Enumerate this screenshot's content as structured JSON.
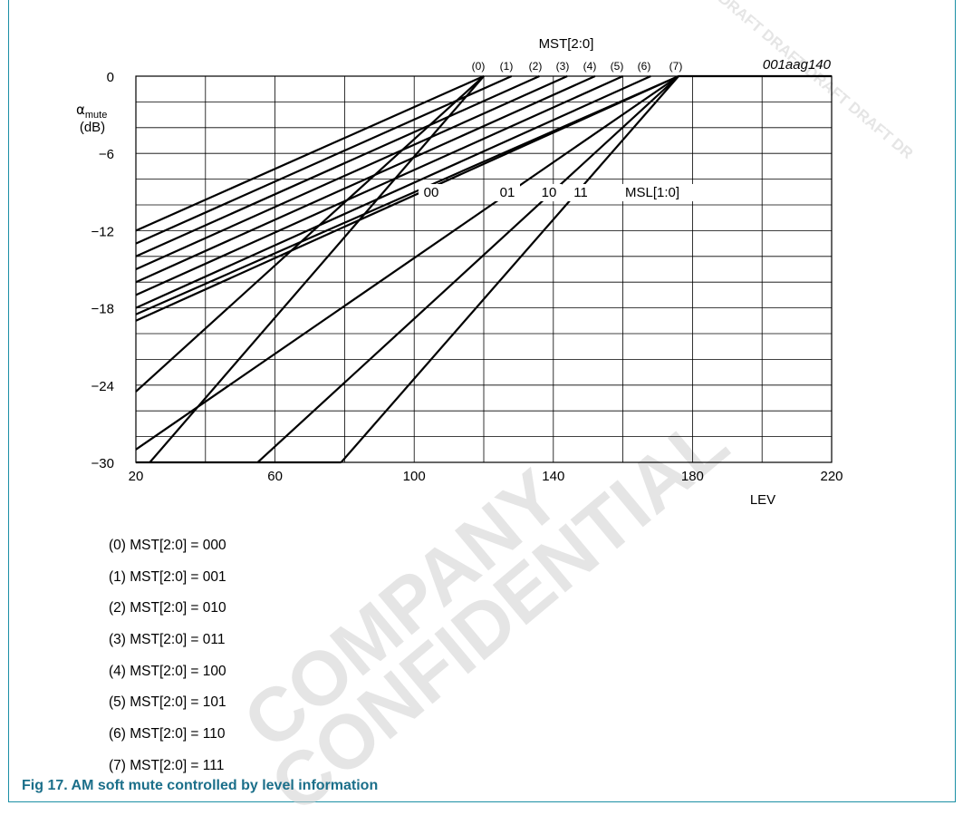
{
  "figure": {
    "code": "001aag140",
    "caption": "Fig 17.   AM soft mute controlled by level information",
    "watermark": [
      "COMPANY",
      "CONFIDENTIAL",
      "DRAFT DRAFT DRAFT DRAFT DR"
    ]
  },
  "chart_data": {
    "type": "line",
    "xlabel": "LEV",
    "ylabel": "αmute",
    "ylabel_main": "α",
    "ylabel_sub": "mute",
    "ylabel_unit": "(dB)",
    "xlim": [
      20,
      220
    ],
    "ylim": [
      -30,
      0
    ],
    "xticks": [
      20,
      60,
      100,
      140,
      180,
      220
    ],
    "yticks": [
      0,
      -6,
      -12,
      -18,
      -24,
      -30
    ],
    "ytick_labels": [
      "0",
      "−6",
      "−12",
      "−18",
      "−24",
      "−30"
    ],
    "grid": true,
    "mst_group_label": "MST[2:0]",
    "mst_labels": [
      "(0)",
      "(1)",
      "(2)",
      "(3)",
      "(4)",
      "(5)",
      "(6)",
      "(7)"
    ],
    "msl_group_label": "MSL[1:0]",
    "msl_labels": [
      "00",
      "01",
      "10",
      "11"
    ],
    "series_mst": [
      {
        "label": "(0)",
        "points": [
          [
            20,
            -12
          ],
          [
            120,
            0
          ]
        ]
      },
      {
        "label": "(1)",
        "points": [
          [
            20,
            -13
          ],
          [
            128,
            0
          ]
        ]
      },
      {
        "label": "(2)",
        "points": [
          [
            20,
            -14
          ],
          [
            136,
            0
          ]
        ]
      },
      {
        "label": "(3)",
        "points": [
          [
            20,
            -15
          ],
          [
            144,
            0
          ]
        ]
      },
      {
        "label": "(4)",
        "points": [
          [
            20,
            -16
          ],
          [
            152,
            0
          ]
        ]
      },
      {
        "label": "(5)",
        "points": [
          [
            20,
            -17
          ],
          [
            160,
            0
          ]
        ]
      },
      {
        "label": "(6)",
        "points": [
          [
            20,
            -18
          ],
          [
            168,
            0
          ]
        ]
      },
      {
        "label": "(7)",
        "points": [
          [
            20,
            -19
          ],
          [
            176,
            0
          ]
        ]
      }
    ],
    "series_msl": [
      {
        "label": "00",
        "points": [
          [
            20,
            -18.5
          ],
          [
            176,
            0
          ]
        ]
      },
      {
        "label": "01",
        "points": [
          [
            20,
            -29
          ],
          [
            176,
            0
          ]
        ]
      },
      {
        "label": "10",
        "points": [
          [
            55,
            -30
          ],
          [
            176,
            0
          ]
        ]
      },
      {
        "label": "11",
        "points": [
          [
            79,
            -30
          ],
          [
            176,
            0
          ]
        ]
      }
    ],
    "series_other": [
      {
        "label": "",
        "points": [
          [
            20,
            -24.5
          ],
          [
            120,
            0
          ]
        ]
      },
      {
        "label": "",
        "points": [
          [
            24,
            -30
          ],
          [
            120,
            0
          ]
        ]
      },
      {
        "label": "",
        "points": [
          [
            20,
            -30
          ],
          [
            79,
            -30
          ]
        ]
      },
      {
        "label": "",
        "points": [
          [
            176,
            0
          ],
          [
            220,
            0
          ]
        ]
      }
    ]
  },
  "legend": {
    "items": [
      "(0) MST[2:0] = 000",
      "(1) MST[2:0] = 001",
      "(2) MST[2:0] = 010",
      "(3) MST[2:0] = 011",
      "(4) MST[2:0] = 100",
      "(5) MST[2:0] = 101",
      "(6) MST[2:0] = 110",
      "(7) MST[2:0] = 111"
    ]
  }
}
